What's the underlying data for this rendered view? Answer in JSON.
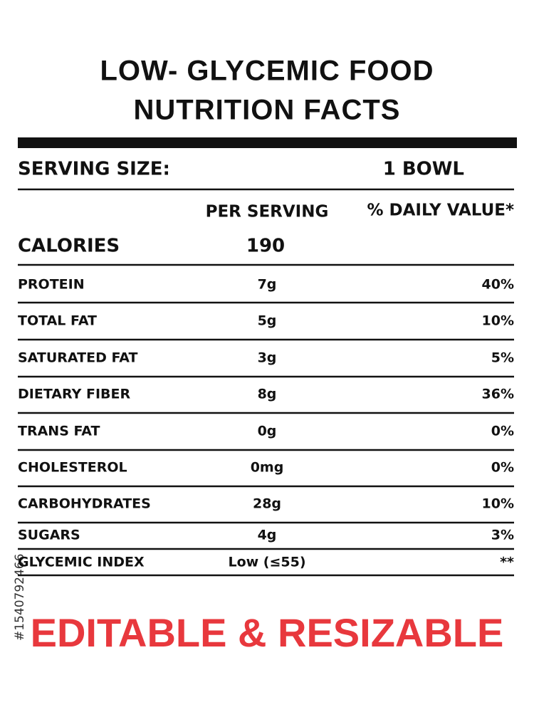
{
  "header": {
    "title_line1": "LOW- GLYCEMIC FOOD",
    "title_line2": "NUTRITION FACTS"
  },
  "serving": {
    "label": "SERVING SIZE:",
    "value": "1 BOWL"
  },
  "columns": {
    "per_serving": "PER SERVING",
    "daily_value": "% DAILY VALUE*"
  },
  "calories": {
    "name": "CALORIES",
    "amount": "190"
  },
  "rows": [
    {
      "name": "PROTEIN",
      "amount": "7g",
      "daily_value": "40%"
    },
    {
      "name": "TOTAL FAT",
      "amount": "5g",
      "daily_value": "10%"
    },
    {
      "name": "SATURATED FAT",
      "amount": "3g",
      "daily_value": "5%"
    },
    {
      "name": "DIETARY FIBER",
      "amount": "8g",
      "daily_value": "36%"
    },
    {
      "name": "TRANS FAT",
      "amount": "0g",
      "daily_value": "0%"
    },
    {
      "name": "CHOLESTEROL",
      "amount": "0mg",
      "daily_value": "0%"
    },
    {
      "name": "CARBOHYDRATES",
      "amount": "28g",
      "daily_value": "10%"
    },
    {
      "name": "SUGARS",
      "amount": "4g",
      "daily_value": "3%"
    },
    {
      "name": "GLYCEMIC INDEX",
      "amount": "Low (≤55)",
      "daily_value": "**"
    }
  ],
  "footer": "EDITABLE & RESIZABLE",
  "watermark_id": "#1540792466"
}
